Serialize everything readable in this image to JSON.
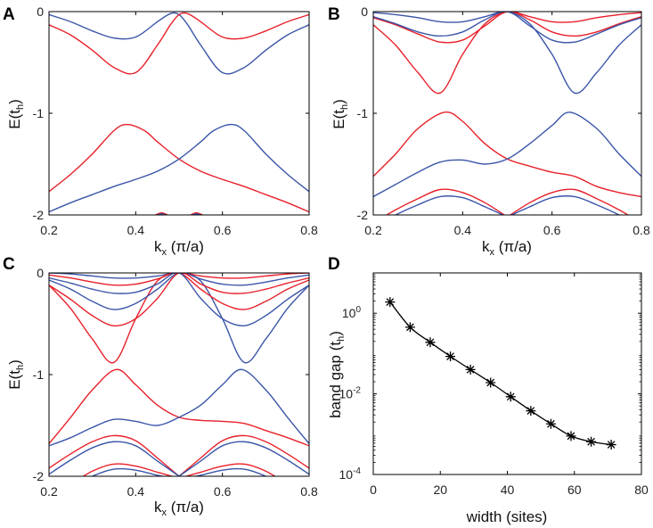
{
  "figure": {
    "colors": {
      "band_blue": "#3a55a8",
      "band_red": "#e8202a",
      "axis": "#000000",
      "curve": "#000000"
    }
  },
  "chart_data": [
    {
      "id": "A",
      "type": "line",
      "panel_label": "A",
      "xlabel": "k",
      "xlabel_sub": "x",
      "xlabel_unit": " (π/a)",
      "ylabel": "E(t",
      "ylabel_sub": "h",
      "ylabel_end": ")",
      "xlim": [
        0.2,
        0.8
      ],
      "ylim": [
        -2,
        0
      ],
      "xticks": [
        0.2,
        0.4,
        0.6,
        0.8
      ],
      "xtick_labels": [
        "0.2",
        "0.4",
        "0.6",
        "0.8"
      ],
      "yticks": [
        0,
        -1,
        -2
      ],
      "ytick_labels": [
        "0",
        "-1",
        "-2"
      ],
      "series": [
        {
          "name": "blue upper",
          "color": "blue",
          "x": [
            0.2,
            0.25,
            0.3,
            0.35,
            0.4,
            0.45,
            0.48,
            0.5,
            0.52,
            0.55,
            0.6,
            0.65,
            0.7,
            0.75,
            0.8
          ],
          "y": [
            -0.03,
            -0.1,
            -0.19,
            -0.26,
            -0.25,
            -0.1,
            -0.02,
            -0.03,
            -0.13,
            -0.33,
            -0.6,
            -0.55,
            -0.38,
            -0.23,
            -0.13
          ]
        },
        {
          "name": "red upper",
          "color": "red",
          "x": [
            0.2,
            0.25,
            0.3,
            0.35,
            0.4,
            0.45,
            0.48,
            0.5,
            0.52,
            0.55,
            0.6,
            0.65,
            0.7,
            0.75,
            0.8
          ],
          "y": [
            -0.13,
            -0.23,
            -0.38,
            -0.55,
            -0.6,
            -0.33,
            -0.13,
            -0.03,
            -0.02,
            -0.1,
            -0.25,
            -0.26,
            -0.19,
            -0.1,
            -0.03
          ]
        },
        {
          "name": "red lower",
          "color": "red",
          "x": [
            0.2,
            0.25,
            0.3,
            0.35,
            0.38,
            0.42,
            0.45,
            0.5,
            0.55,
            0.6,
            0.65,
            0.7,
            0.75,
            0.8
          ],
          "y": [
            -1.77,
            -1.6,
            -1.4,
            -1.17,
            -1.11,
            -1.17,
            -1.28,
            -1.45,
            -1.57,
            -1.65,
            -1.72,
            -1.8,
            -1.88,
            -1.97
          ]
        },
        {
          "name": "blue lower",
          "color": "blue",
          "x": [
            0.2,
            0.25,
            0.3,
            0.35,
            0.4,
            0.45,
            0.5,
            0.55,
            0.58,
            0.62,
            0.65,
            0.7,
            0.75,
            0.8
          ],
          "y": [
            -1.97,
            -1.88,
            -1.8,
            -1.72,
            -1.65,
            -1.57,
            -1.45,
            -1.28,
            -1.17,
            -1.11,
            -1.17,
            -1.4,
            -1.6,
            -1.77
          ]
        },
        {
          "name": "red bottom",
          "color": "red",
          "x": [
            0.43,
            0.46,
            0.49,
            0.51,
            0.54,
            0.57
          ],
          "y": [
            -2.04,
            -1.98,
            -2.04,
            -2.04,
            -1.98,
            -2.04
          ]
        },
        {
          "name": "blue bottom",
          "color": "blue",
          "x": [
            0.43,
            0.46,
            0.49,
            0.51,
            0.54,
            0.57
          ],
          "y": [
            -2.05,
            -1.99,
            -2.05,
            -2.05,
            -1.99,
            -2.05
          ]
        }
      ]
    },
    {
      "id": "B",
      "type": "line",
      "panel_label": "B",
      "xlabel": "k",
      "xlabel_sub": "x",
      "xlabel_unit": " (π/a)",
      "ylabel": "E(t",
      "ylabel_sub": "h",
      "ylabel_end": ")",
      "xlim": [
        0.2,
        0.8
      ],
      "ylim": [
        -2,
        0
      ],
      "xticks": [
        0.2,
        0.4,
        0.6,
        0.8
      ],
      "xtick_labels": [
        "0.2",
        "0.4",
        "0.6",
        "0.8"
      ],
      "yticks": [
        0,
        -1,
        -2
      ],
      "ytick_labels": [
        "0",
        "-1",
        "-2"
      ],
      "series": [
        {
          "name": "blue 1",
          "color": "blue",
          "x": [
            0.2,
            0.25,
            0.3,
            0.35,
            0.4,
            0.45,
            0.5,
            0.55,
            0.6,
            0.65,
            0.7,
            0.75,
            0.8
          ],
          "y": [
            -0.01,
            -0.03,
            -0.06,
            -0.1,
            -0.1,
            -0.05,
            0.0,
            -0.12,
            -0.42,
            -0.8,
            -0.6,
            -0.33,
            -0.13
          ]
        },
        {
          "name": "red 1",
          "color": "red",
          "x": [
            0.2,
            0.25,
            0.3,
            0.35,
            0.4,
            0.45,
            0.5,
            0.55,
            0.6,
            0.65,
            0.7,
            0.75,
            0.8
          ],
          "y": [
            -0.13,
            -0.33,
            -0.6,
            -0.8,
            -0.42,
            -0.12,
            0.0,
            -0.05,
            -0.1,
            -0.1,
            -0.06,
            -0.03,
            -0.01
          ]
        },
        {
          "name": "red 2",
          "color": "red",
          "x": [
            0.2,
            0.25,
            0.3,
            0.35,
            0.4,
            0.45,
            0.5,
            0.55,
            0.6,
            0.65,
            0.7,
            0.75,
            0.8
          ],
          "y": [
            -0.06,
            -0.13,
            -0.22,
            -0.3,
            -0.28,
            -0.14,
            0.0,
            -0.08,
            -0.2,
            -0.24,
            -0.2,
            -0.12,
            -0.05
          ]
        },
        {
          "name": "blue 2",
          "color": "blue",
          "x": [
            0.2,
            0.25,
            0.3,
            0.35,
            0.4,
            0.45,
            0.5,
            0.55,
            0.6,
            0.65,
            0.7,
            0.75,
            0.8
          ],
          "y": [
            -0.05,
            -0.12,
            -0.2,
            -0.24,
            -0.2,
            -0.08,
            0.0,
            -0.14,
            -0.28,
            -0.3,
            -0.22,
            -0.13,
            -0.06
          ]
        },
        {
          "name": "red lower",
          "color": "red",
          "x": [
            0.2,
            0.25,
            0.3,
            0.36,
            0.4,
            0.45,
            0.5,
            0.55,
            0.6,
            0.65,
            0.7,
            0.75,
            0.8
          ],
          "y": [
            -1.62,
            -1.4,
            -1.15,
            -0.99,
            -1.08,
            -1.3,
            -1.45,
            -1.52,
            -1.58,
            -1.62,
            -1.72,
            -1.78,
            -1.82
          ]
        },
        {
          "name": "blue lower",
          "color": "blue",
          "x": [
            0.2,
            0.25,
            0.3,
            0.35,
            0.4,
            0.45,
            0.5,
            0.55,
            0.6,
            0.64,
            0.7,
            0.75,
            0.8
          ],
          "y": [
            -1.82,
            -1.7,
            -1.58,
            -1.48,
            -1.46,
            -1.5,
            -1.45,
            -1.3,
            -1.12,
            -0.99,
            -1.15,
            -1.4,
            -1.62
          ]
        },
        {
          "name": "red bottom L",
          "color": "red",
          "x": [
            0.2,
            0.25,
            0.3,
            0.35,
            0.4,
            0.45,
            0.5
          ],
          "y": [
            -2.08,
            -1.95,
            -1.84,
            -1.75,
            -1.78,
            -1.88,
            -2.02
          ]
        },
        {
          "name": "blue bottom L",
          "color": "blue",
          "x": [
            0.2,
            0.25,
            0.3,
            0.35,
            0.4,
            0.45,
            0.5
          ],
          "y": [
            -2.12,
            -2.0,
            -1.9,
            -1.82,
            -1.83,
            -1.92,
            -2.02
          ]
        },
        {
          "name": "red bottom R",
          "color": "red",
          "x": [
            0.5,
            0.55,
            0.6,
            0.65,
            0.7,
            0.75,
            0.8
          ],
          "y": [
            -2.02,
            -1.88,
            -1.78,
            -1.75,
            -1.84,
            -1.95,
            -2.08
          ]
        },
        {
          "name": "blue bottom R",
          "color": "blue",
          "x": [
            0.5,
            0.55,
            0.6,
            0.65,
            0.7,
            0.75,
            0.8
          ],
          "y": [
            -2.02,
            -1.92,
            -1.83,
            -1.82,
            -1.9,
            -2.0,
            -2.12
          ]
        }
      ]
    },
    {
      "id": "C",
      "type": "line",
      "panel_label": "C",
      "xlabel": "k",
      "xlabel_sub": "x",
      "xlabel_unit": " (π/a)",
      "ylabel": "E(t",
      "ylabel_sub": "h",
      "ylabel_end": ")",
      "xlim": [
        0.2,
        0.8
      ],
      "ylim": [
        -2,
        0
      ],
      "xticks": [
        0.2,
        0.4,
        0.6,
        0.8
      ],
      "xtick_labels": [
        "0.2",
        "0.4",
        "0.6",
        "0.8"
      ],
      "yticks": [
        0,
        -1,
        -2
      ],
      "ytick_labels": [
        "0",
        "-1",
        "-2"
      ],
      "series": [
        {
          "name": "blue a",
          "color": "blue",
          "x": [
            0.2,
            0.25,
            0.3,
            0.35,
            0.4,
            0.45,
            0.5,
            0.55,
            0.6,
            0.65,
            0.7,
            0.75,
            0.8
          ],
          "y": [
            0.0,
            -0.01,
            -0.03,
            -0.05,
            -0.05,
            -0.03,
            0.0,
            -0.08,
            -0.45,
            -0.88,
            -0.65,
            -0.35,
            -0.12
          ]
        },
        {
          "name": "red a",
          "color": "red",
          "x": [
            0.2,
            0.25,
            0.3,
            0.35,
            0.4,
            0.45,
            0.5,
            0.55,
            0.6,
            0.65,
            0.7,
            0.75,
            0.8
          ],
          "y": [
            -0.12,
            -0.35,
            -0.65,
            -0.88,
            -0.45,
            -0.08,
            0.0,
            -0.03,
            -0.05,
            -0.05,
            -0.03,
            -0.01,
            0.0
          ]
        },
        {
          "name": "red b",
          "color": "red",
          "x": [
            0.2,
            0.25,
            0.3,
            0.35,
            0.4,
            0.45,
            0.5,
            0.55,
            0.6,
            0.65,
            0.7,
            0.75,
            0.8
          ],
          "y": [
            -0.02,
            -0.05,
            -0.09,
            -0.12,
            -0.11,
            -0.06,
            0.0,
            -0.16,
            -0.3,
            -0.36,
            -0.28,
            -0.16,
            -0.07
          ]
        },
        {
          "name": "blue b",
          "color": "blue",
          "x": [
            0.2,
            0.25,
            0.3,
            0.35,
            0.4,
            0.45,
            0.5,
            0.55,
            0.6,
            0.65,
            0.7,
            0.75,
            0.8
          ],
          "y": [
            -0.07,
            -0.16,
            -0.28,
            -0.36,
            -0.3,
            -0.16,
            0.0,
            -0.06,
            -0.11,
            -0.12,
            -0.09,
            -0.05,
            -0.02
          ]
        },
        {
          "name": "blue c",
          "color": "blue",
          "x": [
            0.2,
            0.25,
            0.3,
            0.35,
            0.4,
            0.45,
            0.5,
            0.55,
            0.6,
            0.65,
            0.7,
            0.75,
            0.8
          ],
          "y": [
            -0.05,
            -0.1,
            -0.16,
            -0.2,
            -0.19,
            -0.11,
            0.0,
            -0.25,
            -0.45,
            -0.52,
            -0.42,
            -0.26,
            -0.12
          ]
        },
        {
          "name": "red c",
          "color": "red",
          "x": [
            0.2,
            0.25,
            0.3,
            0.35,
            0.4,
            0.45,
            0.5,
            0.55,
            0.6,
            0.65,
            0.7,
            0.75,
            0.8
          ],
          "y": [
            -0.12,
            -0.26,
            -0.42,
            -0.52,
            -0.45,
            -0.25,
            0.0,
            -0.11,
            -0.19,
            -0.2,
            -0.16,
            -0.1,
            -0.05
          ]
        },
        {
          "name": "red lower",
          "color": "red",
          "x": [
            0.2,
            0.25,
            0.3,
            0.355,
            0.4,
            0.45,
            0.5,
            0.55,
            0.6,
            0.65,
            0.7,
            0.75,
            0.8
          ],
          "y": [
            -1.68,
            -1.42,
            -1.15,
            -0.95,
            -1.1,
            -1.3,
            -1.42,
            -1.45,
            -1.46,
            -1.48,
            -1.55,
            -1.62,
            -1.7
          ]
        },
        {
          "name": "blue lower",
          "color": "blue",
          "x": [
            0.2,
            0.25,
            0.3,
            0.35,
            0.4,
            0.45,
            0.5,
            0.55,
            0.6,
            0.645,
            0.7,
            0.75,
            0.8
          ],
          "y": [
            -1.7,
            -1.62,
            -1.52,
            -1.44,
            -1.46,
            -1.5,
            -1.42,
            -1.3,
            -1.1,
            -0.95,
            -1.15,
            -1.42,
            -1.68
          ]
        },
        {
          "name": "red low L1",
          "color": "red",
          "x": [
            0.2,
            0.25,
            0.3,
            0.35,
            0.4,
            0.45,
            0.5
          ],
          "y": [
            -1.92,
            -1.78,
            -1.66,
            -1.6,
            -1.65,
            -1.82,
            -2.0
          ]
        },
        {
          "name": "blue low L1",
          "color": "blue",
          "x": [
            0.2,
            0.25,
            0.3,
            0.35,
            0.4,
            0.45,
            0.5
          ],
          "y": [
            -1.98,
            -1.84,
            -1.72,
            -1.66,
            -1.7,
            -1.85,
            -2.0
          ]
        },
        {
          "name": "red low R1",
          "color": "red",
          "x": [
            0.5,
            0.55,
            0.6,
            0.65,
            0.7,
            0.75,
            0.8
          ],
          "y": [
            -2.0,
            -1.82,
            -1.65,
            -1.6,
            -1.66,
            -1.78,
            -1.92
          ]
        },
        {
          "name": "blue low R1",
          "color": "blue",
          "x": [
            0.5,
            0.55,
            0.6,
            0.65,
            0.7,
            0.75,
            0.8
          ],
          "y": [
            -2.0,
            -1.85,
            -1.7,
            -1.66,
            -1.72,
            -1.84,
            -1.98
          ]
        },
        {
          "name": "red low L2",
          "color": "red",
          "x": [
            0.25,
            0.3,
            0.35,
            0.4,
            0.45,
            0.5
          ],
          "y": [
            -2.08,
            -1.95,
            -1.88,
            -1.9,
            -1.96,
            -2.02
          ]
        },
        {
          "name": "blue low L2",
          "color": "blue",
          "x": [
            0.25,
            0.3,
            0.35,
            0.4,
            0.45,
            0.5
          ],
          "y": [
            -2.12,
            -2.0,
            -1.93,
            -1.94,
            -1.99,
            -2.03
          ]
        },
        {
          "name": "red low R2",
          "color": "red",
          "x": [
            0.5,
            0.55,
            0.6,
            0.65,
            0.7,
            0.75
          ],
          "y": [
            -2.02,
            -1.96,
            -1.9,
            -1.88,
            -1.95,
            -2.08
          ]
        },
        {
          "name": "blue low R2",
          "color": "blue",
          "x": [
            0.5,
            0.55,
            0.6,
            0.65,
            0.7,
            0.75
          ],
          "y": [
            -2.03,
            -1.99,
            -1.94,
            -1.93,
            -2.0,
            -2.12
          ]
        }
      ]
    },
    {
      "id": "D",
      "type": "line",
      "panel_label": "D",
      "yscale": "log",
      "xlabel": "width (sites)",
      "ylabel": "band gap (t",
      "ylabel_sub": "h",
      "ylabel_end": ")",
      "xlim": [
        0,
        80
      ],
      "ylim": [
        0.0001,
        10
      ],
      "xticks": [
        0,
        20,
        40,
        60,
        80
      ],
      "xtick_labels": [
        "0",
        "20",
        "40",
        "60",
        "80"
      ],
      "yticks": [
        1,
        0.01,
        0.0001
      ],
      "ytick_base": [
        "10",
        "10",
        "10"
      ],
      "ytick_exp": [
        "0",
        "-2",
        "-4"
      ],
      "x": [
        5,
        11,
        17,
        23,
        29,
        35,
        41,
        47,
        53,
        59,
        65,
        71
      ],
      "y": [
        1.9,
        0.45,
        0.19,
        0.085,
        0.04,
        0.019,
        0.0085,
        0.0038,
        0.0018,
        0.0009,
        0.00065,
        0.00055
      ]
    }
  ]
}
